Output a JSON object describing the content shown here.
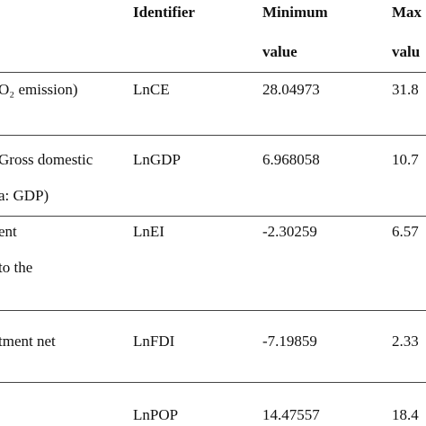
{
  "table": {
    "header": [
      [
        "Identifier"
      ],
      [
        "Minimum",
        "value"
      ],
      [
        "Max",
        "valu"
      ]
    ],
    "rows": [
      {
        "variable": [
          "O₂ emission)"
        ],
        "identifier": "LnCE",
        "min": "28.04973",
        "max": "31.8"
      },
      {
        "variable": [
          "Gross domestic",
          "a: GDP)"
        ],
        "identifier": "LnGDP",
        "min": "6.968058",
        "max": "10.7"
      },
      {
        "variable": [
          "ent",
          "to the"
        ],
        "identifier": "LnEI",
        "min": "-2.30259",
        "max": "6.57"
      },
      {
        "variable": [
          "tment net"
        ],
        "identifier": "LnFDI",
        "min": "-7.19859",
        "max": "2.33"
      },
      {
        "identifier": "LnPOP",
        "min": "14.47557",
        "max": "18.4"
      }
    ]
  }
}
